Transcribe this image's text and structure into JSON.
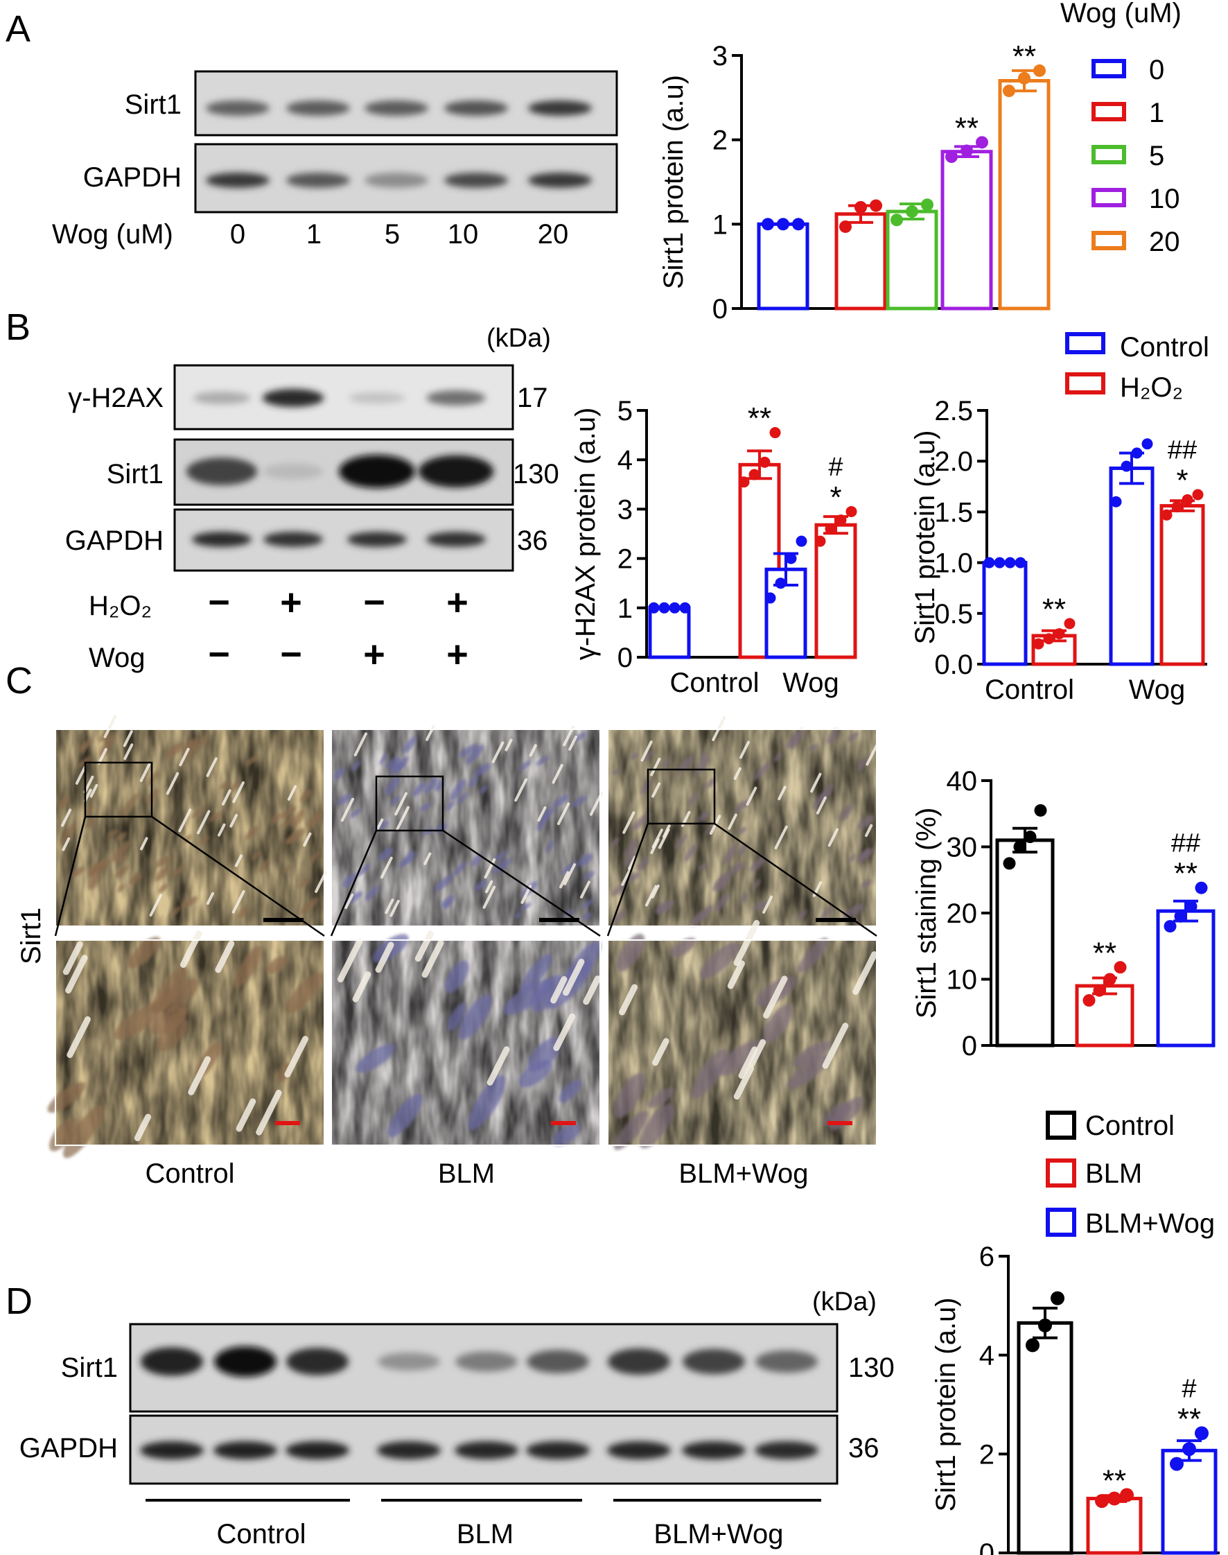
{
  "panels": {
    "A": {
      "label": "A",
      "blot": {
        "rows": [
          "Sirt1",
          "GAPDH"
        ],
        "dose_label": "Wog (uM)",
        "doses": [
          "0",
          "1",
          "5",
          "10",
          "20"
        ],
        "band_intensity": {
          "Sirt1": [
            0.62,
            0.64,
            0.64,
            0.68,
            0.8
          ],
          "GAPDH": [
            0.8,
            0.66,
            0.42,
            0.72,
            0.8
          ]
        }
      },
      "legend": {
        "title": "Wog (uM)",
        "items": [
          "0",
          "1",
          "5",
          "10",
          "20"
        ]
      }
    },
    "B": {
      "label": "B",
      "kda_label": "(kDa)",
      "blot": {
        "rows": [
          {
            "name": "γ-H2AX",
            "kda": "17"
          },
          {
            "name": "Sirt1",
            "kda": "130"
          },
          {
            "name": "GAPDH",
            "kda": "36"
          }
        ],
        "band_intensity": {
          "γ-H2AX": [
            0.28,
            0.85,
            0.18,
            0.55
          ],
          "Sirt1": [
            0.75,
            0.22,
            1.0,
            0.95
          ],
          "GAPDH": [
            0.85,
            0.82,
            0.82,
            0.82
          ]
        },
        "treatments": [
          {
            "label": "H₂O₂",
            "signs": [
              "−",
              "+",
              "−",
              "+"
            ]
          },
          {
            "label": "Wog",
            "signs": [
              "−",
              "−",
              "+",
              "+"
            ]
          }
        ]
      },
      "legend": {
        "items": [
          "Control",
          "H₂O₂"
        ]
      }
    },
    "C": {
      "label": "C",
      "row_label": "Sirt1",
      "groups": [
        "Control",
        "BLM",
        "BLM+Wog"
      ],
      "legend": {
        "items": [
          "Control",
          "BLM",
          "BLM+Wog"
        ]
      }
    },
    "D": {
      "label": "D",
      "kda_label": "(kDa)",
      "blot": {
        "rows": [
          {
            "name": "Sirt1",
            "kda": "130"
          },
          {
            "name": "GAPDH",
            "kda": "36"
          }
        ],
        "groups": [
          "Control",
          "BLM",
          "BLM+Wog"
        ],
        "band_intensity": {
          "Sirt1": [
            0.9,
            1.0,
            0.85,
            0.4,
            0.5,
            0.65,
            0.8,
            0.75,
            0.6
          ],
          "GAPDH": [
            0.9,
            0.9,
            0.9,
            0.88,
            0.88,
            0.88,
            0.88,
            0.88,
            0.85
          ]
        }
      }
    }
  },
  "colors": {
    "blue": "#1010f0",
    "red": "#e01414",
    "green": "#4cbc2c",
    "purple": "#a020e0",
    "orange": "#ec7c1c",
    "black": "#000000"
  },
  "chart_data": [
    {
      "id": "A",
      "type": "bar",
      "ylabel": "Sirt1 protein (a.u)",
      "ylim": [
        0,
        3
      ],
      "yticks": [
        0,
        1,
        2,
        3
      ],
      "categories": [
        "0",
        "1",
        "5",
        "10",
        "20"
      ],
      "values": [
        1.0,
        1.12,
        1.15,
        1.86,
        2.7
      ],
      "errors": [
        0.0,
        0.1,
        0.09,
        0.06,
        0.12
      ],
      "points": [
        [
          1.0,
          1.0,
          1.0
        ],
        [
          0.97,
          1.2,
          1.22
        ],
        [
          1.05,
          1.15,
          1.23
        ],
        [
          1.8,
          1.87,
          1.97
        ],
        [
          2.58,
          2.73,
          2.82
        ]
      ],
      "colors": [
        "#1010f0",
        "#e01414",
        "#4cbc2c",
        "#a020e0",
        "#ec7c1c"
      ],
      "sig": [
        "",
        "",
        "",
        "**",
        "**"
      ],
      "legend_title": "Wog (uM)"
    },
    {
      "id": "B1",
      "type": "bar",
      "ylabel": "γ-H2AX protein (a.u)",
      "ylim": [
        0,
        5
      ],
      "yticks": [
        0,
        1,
        2,
        3,
        4,
        5
      ],
      "categories": [
        "Control",
        "Wog"
      ],
      "series": [
        {
          "name": "Control",
          "values": [
            1.0,
            1.78
          ],
          "errors": [
            0.0,
            0.32
          ],
          "points": [
            [
              1.0,
              1.0,
              1.0,
              1.0
            ],
            [
              1.2,
              1.5,
              2.0,
              2.35
            ]
          ],
          "sig": [
            "",
            ""
          ]
        },
        {
          "name": "H₂O₂",
          "values": [
            3.9,
            2.68
          ],
          "errors": [
            0.28,
            0.17
          ],
          "points": [
            [
              3.55,
              3.7,
              3.95,
              4.55
            ],
            [
              2.35,
              2.6,
              2.78,
              2.95
            ]
          ],
          "sig": [
            "**",
            "*"
          ],
          "sig2": [
            "",
            "#"
          ]
        }
      ]
    },
    {
      "id": "B2",
      "type": "bar",
      "ylabel": "Sirt1 protein (a.u)",
      "ylim": [
        0,
        2.5
      ],
      "yticks": [
        0,
        0.5,
        1.0,
        1.5,
        2.0,
        2.5
      ],
      "categories": [
        "Control",
        "Wog"
      ],
      "series": [
        {
          "name": "Control",
          "values": [
            1.0,
            1.93
          ],
          "errors": [
            0.0,
            0.15
          ],
          "points": [
            [
              1.0,
              1.0,
              1.0,
              1.0
            ],
            [
              1.6,
              1.95,
              2.08,
              2.17
            ]
          ],
          "sig": [
            "",
            ""
          ]
        },
        {
          "name": "H₂O₂",
          "values": [
            0.28,
            1.56
          ],
          "errors": [
            0.05,
            0.05
          ],
          "points": [
            [
              0.2,
              0.25,
              0.3,
              0.4
            ],
            [
              1.47,
              1.55,
              1.62,
              1.67
            ]
          ],
          "sig": [
            "**",
            "*"
          ],
          "sig2": [
            "",
            "##"
          ]
        }
      ]
    },
    {
      "id": "C",
      "type": "bar",
      "ylabel": "Sirt1 staining (%)",
      "ylim": [
        0,
        40
      ],
      "yticks": [
        0,
        10,
        20,
        30,
        40
      ],
      "categories": [
        "Control",
        "BLM",
        "BLM+Wog"
      ],
      "values": [
        31,
        9,
        20.3
      ],
      "errors": [
        1.8,
        1.2,
        1.5
      ],
      "points": [
        [
          27.5,
          30.0,
          31.5,
          35.5
        ],
        [
          6.8,
          8.3,
          10.0,
          11.8
        ],
        [
          18.0,
          19.5,
          21.0,
          23.8
        ]
      ],
      "colors": [
        "#000000",
        "#e01414",
        "#1010f0"
      ],
      "sig": [
        "",
        "**",
        "**"
      ],
      "sig2": [
        "",
        "",
        "##"
      ]
    },
    {
      "id": "D",
      "type": "bar",
      "ylabel": "Sirt1 protein (a.u)",
      "ylim": [
        0,
        6
      ],
      "yticks": [
        0,
        2,
        4,
        6
      ],
      "categories": [
        "Control",
        "BLM",
        "BLM+Wog"
      ],
      "values": [
        4.65,
        1.1,
        2.07
      ],
      "errors": [
        0.3,
        0.06,
        0.2
      ],
      "points": [
        [
          4.2,
          4.6,
          5.15
        ],
        [
          1.05,
          1.1,
          1.17
        ],
        [
          1.8,
          2.1,
          2.42
        ]
      ],
      "colors": [
        "#000000",
        "#e01414",
        "#1010f0"
      ],
      "sig": [
        "",
        "**",
        "**"
      ],
      "sig2": [
        "",
        "",
        "#"
      ]
    }
  ]
}
